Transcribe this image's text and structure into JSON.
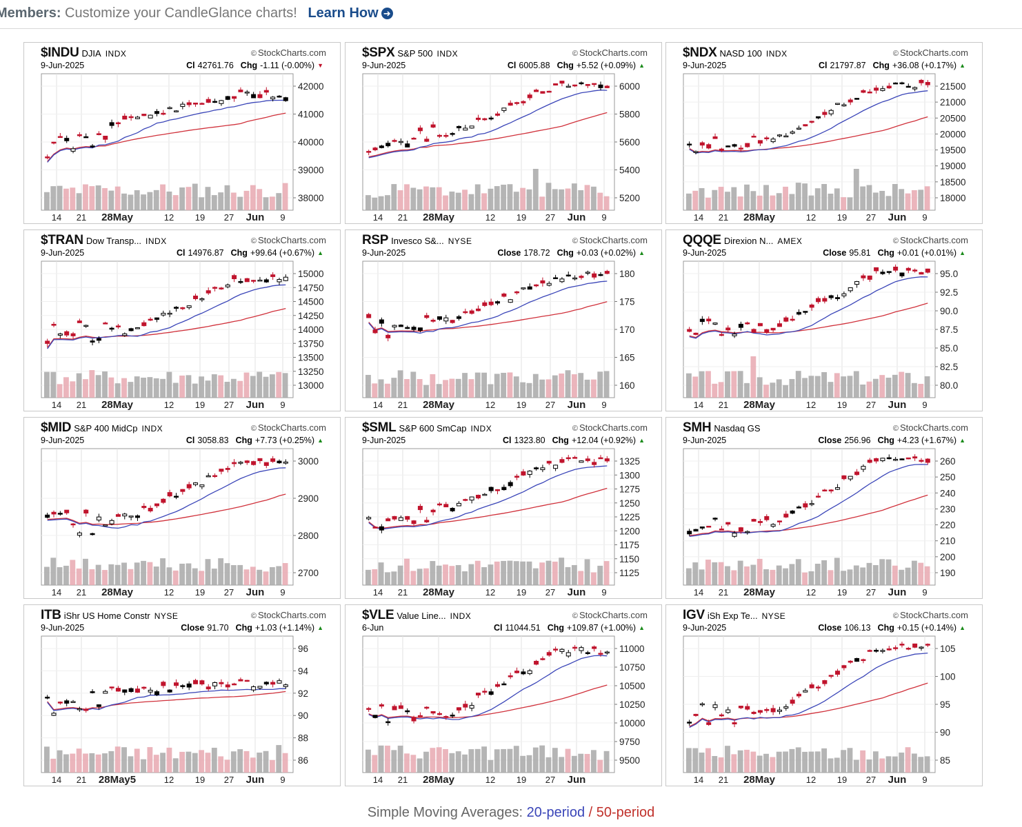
{
  "banner": {
    "label": "Members:",
    "message": "Customize your CandleGlance charts!",
    "link": "Learn How",
    "link_icon": "arrow-right-circle-icon"
  },
  "brand": "StockCharts.com",
  "footer": {
    "prefix": "Simple Moving Averages:",
    "sma20": "20-period",
    "sep": " / ",
    "sma50": "50-period"
  },
  "colors": {
    "up": "#000000",
    "down": "#c0142d",
    "sma20": "#3a45b8",
    "sma50": "#d0303a",
    "vol_up": "#a8a8a8",
    "vol_down": "#e8a8b0"
  },
  "panels": [
    {
      "symbol": "$INDU",
      "name": "DJIA",
      "exchange": "INDX",
      "date": "9-Jun-2025",
      "price_label": "Cl",
      "price": "42761.76",
      "chg_label": "Chg",
      "chg": "-1.11 (-0.00%)",
      "dir": "down",
      "chart_data": {
        "type": "candlestick",
        "y_ticks": [
          "42000",
          "41000",
          "40000",
          "39000",
          "38000"
        ],
        "x_ticks": [
          "14",
          "21",
          "28May",
          "12",
          "19",
          "27",
          "Jun",
          "9"
        ],
        "seed": 11,
        "start": 0.78,
        "dip": 0.45,
        "end": 0.18,
        "vol_spike": -1
      }
    },
    {
      "symbol": "$SPX",
      "name": "S&P 500",
      "exchange": "INDX",
      "date": "9-Jun-2025",
      "price_label": "Cl",
      "price": "6005.88",
      "chg_label": "Chg",
      "chg": "+5.52 (+0.09%)",
      "dir": "up",
      "chart_data": {
        "type": "candlestick",
        "y_ticks": [
          "6000",
          "5800",
          "5600",
          "5400",
          "5200"
        ],
        "x_ticks": [
          "14",
          "21",
          "28May",
          "12",
          "19",
          "27",
          "Jun",
          "9"
        ],
        "seed": 23,
        "start": 0.72,
        "dip": 0.6,
        "end": 0.06,
        "vol_spike": 26
      }
    },
    {
      "symbol": "$NDX",
      "name": "NASD 100",
      "exchange": "INDX",
      "date": "9-Jun-2025",
      "price_label": "Cl",
      "price": "21797.87",
      "chg_label": "Chg",
      "chg": "+36.08 (+0.17%)",
      "dir": "up",
      "chart_data": {
        "type": "candlestick",
        "y_ticks": [
          "21500",
          "21000",
          "20500",
          "20000",
          "19500",
          "19000",
          "18500",
          "18000"
        ],
        "x_ticks": [
          "14",
          "21",
          "28May",
          "12",
          "19",
          "27",
          "Jun",
          "9"
        ],
        "seed": 37,
        "start": 0.7,
        "dip": 0.68,
        "end": 0.07,
        "vol_spike": 26
      }
    },
    {
      "symbol": "$TRAN",
      "name": "Dow Transp...",
      "exchange": "INDX",
      "date": "9-Jun-2025",
      "price_label": "Cl",
      "price": "14976.87",
      "chg_label": "Chg",
      "chg": "+99.64 (+0.67%)",
      "dir": "up",
      "chart_data": {
        "type": "candlestick",
        "y_ticks": [
          "15000",
          "14750",
          "14500",
          "14250",
          "14000",
          "13750",
          "13500",
          "13250",
          "13000"
        ],
        "x_ticks": [
          "14",
          "21",
          "28May",
          "12",
          "19",
          "27",
          "Jun",
          "9"
        ],
        "seed": 41,
        "start": 0.75,
        "dip": 0.72,
        "end": 0.15,
        "vol_spike": -1
      }
    },
    {
      "symbol": "RSP",
      "name": "Invesco S&...",
      "exchange": "NYSE",
      "date": "9-Jun-2025",
      "price_label": "Close",
      "price": "178.72",
      "chg_label": "Chg",
      "chg": "+0.03 (+0.02%)",
      "dir": "up",
      "chart_data": {
        "type": "candlestick",
        "y_ticks": [
          "180",
          "175",
          "170",
          "165",
          "160"
        ],
        "x_ticks": [
          "14",
          "21",
          "28May",
          "12",
          "19",
          "27",
          "Jun",
          "9"
        ],
        "seed": 53,
        "start": 0.7,
        "dip": 0.62,
        "end": 0.1,
        "vol_spike": -1
      }
    },
    {
      "symbol": "QQQE",
      "name": "Direxion N...",
      "exchange": "AMEX",
      "date": "9-Jun-2025",
      "price_label": "Close",
      "price": "95.81",
      "chg_label": "Chg",
      "chg": "+0.01 (+0.01%)",
      "dir": "up",
      "chart_data": {
        "type": "candlestick",
        "y_ticks": [
          "95.0",
          "92.5",
          "90.0",
          "87.5",
          "85.0",
          "82.5",
          "80.0"
        ],
        "x_ticks": [
          "14",
          "21",
          "28May",
          "12",
          "19",
          "27",
          "Jun",
          "9"
        ],
        "seed": 67,
        "start": 0.68,
        "dip": 0.72,
        "end": 0.05,
        "vol_spike": 10
      }
    },
    {
      "symbol": "$MID",
      "name": "S&P 400 MidCp",
      "exchange": "INDX",
      "date": "9-Jun-2025",
      "price_label": "Cl",
      "price": "3058.83",
      "chg_label": "Chg",
      "chg": "+7.73 (+0.25%)",
      "dir": "up",
      "chart_data": {
        "type": "candlestick",
        "y_ticks": [
          "3000",
          "2900",
          "2800",
          "2700"
        ],
        "x_ticks": [
          "14",
          "21",
          "28May",
          "12",
          "19",
          "27",
          "Jun",
          "9"
        ],
        "seed": 71,
        "start": 0.8,
        "dip": 0.72,
        "end": 0.1,
        "vol_spike": -1
      }
    },
    {
      "symbol": "$SML",
      "name": "S&P 600 SmCap",
      "exchange": "INDX",
      "date": "9-Jun-2025",
      "price_label": "Cl",
      "price": "1323.80",
      "chg_label": "Chg",
      "chg": "+12.04 (+0.92%)",
      "dir": "up",
      "chart_data": {
        "type": "candlestick",
        "y_ticks": [
          "1325",
          "1300",
          "1275",
          "1250",
          "1225",
          "1200",
          "1175",
          "1150",
          "1125"
        ],
        "x_ticks": [
          "14",
          "21",
          "28May",
          "12",
          "19",
          "27",
          "Jun",
          "9"
        ],
        "seed": 83,
        "start": 0.82,
        "dip": 0.6,
        "end": 0.08,
        "vol_spike": -1
      }
    },
    {
      "symbol": "SMH",
      "name": "Nasdaq GS",
      "exchange": "",
      "date": "9-Jun-2025",
      "price_label": "Close",
      "price": "256.96",
      "chg_label": "Chg",
      "chg": "+4.23 (+1.67%)",
      "dir": "up",
      "chart_data": {
        "type": "candlestick",
        "y_ticks": [
          "260",
          "250",
          "240",
          "230",
          "220",
          "210",
          "200",
          "190"
        ],
        "x_ticks": [
          "14",
          "21",
          "28May",
          "12",
          "19",
          "27",
          "Jun",
          "9"
        ],
        "seed": 97,
        "start": 0.8,
        "dip": 0.8,
        "end": 0.06,
        "vol_spike": -1
      }
    },
    {
      "symbol": "ITB",
      "name": "iShr US Home Constr",
      "exchange": "NYSE",
      "date": "9-Jun-2025",
      "price_label": "Close",
      "price": "91.70",
      "chg_label": "Chg",
      "chg": "+1.03 (+1.14%)",
      "dir": "up",
      "chart_data": {
        "type": "candlestick",
        "y_ticks": [
          "96",
          "94",
          "92",
          "90",
          "88",
          "86"
        ],
        "x_ticks": [
          "14",
          "21",
          "28May5",
          "12",
          "19",
          "27",
          "Jun",
          "9"
        ],
        "seed": 101,
        "start": 0.72,
        "dip": 0.55,
        "end": 0.48,
        "vol_spike": -1
      }
    },
    {
      "symbol": "$VLE",
      "name": "Value Line...",
      "exchange": "INDX",
      "date": "6-Jun",
      "price_label": "Cl",
      "price": "11044.51",
      "chg_label": "Chg",
      "chg": "+109.87 (+1.00%)",
      "dir": "up",
      "chart_data": {
        "type": "candlestick",
        "y_ticks": [
          "11000",
          "10750",
          "10500",
          "10250",
          "10000",
          "9750",
          "9500"
        ],
        "x_ticks": [
          "14",
          "21",
          "28May",
          "12",
          "19",
          "27",
          "Jun"
        ],
        "seed": 113,
        "start": 0.85,
        "dip": 0.82,
        "end": 0.1,
        "vol_spike": -1
      }
    },
    {
      "symbol": "IGV",
      "name": "iSh Exp Te...",
      "exchange": "NYSE",
      "date": "9-Jun-2025",
      "price_label": "Close",
      "price": "106.13",
      "chg_label": "Chg",
      "chg": "+0.15 (+0.14%)",
      "dir": "up",
      "chart_data": {
        "type": "candlestick",
        "y_ticks": [
          "105",
          "100",
          "95",
          "90",
          "85"
        ],
        "x_ticks": [
          "14",
          "21",
          "28May",
          "12",
          "19",
          "27",
          "Jun",
          "9"
        ],
        "seed": 127,
        "start": 0.82,
        "dip": 0.8,
        "end": 0.06,
        "vol_spike": -1
      }
    }
  ]
}
